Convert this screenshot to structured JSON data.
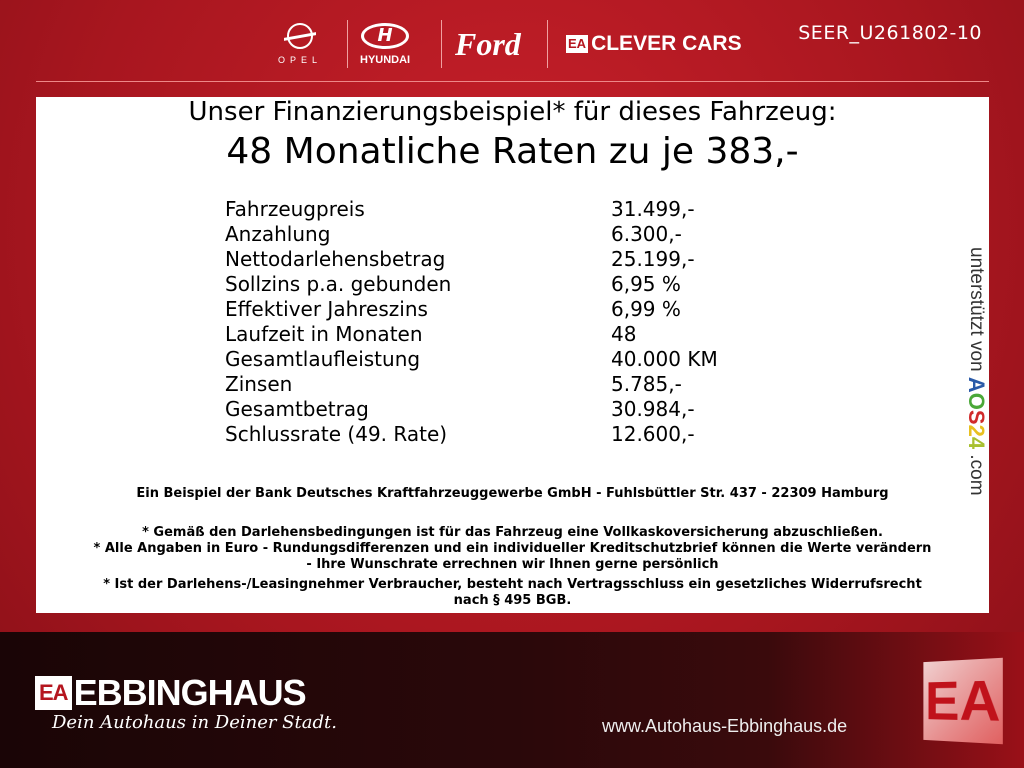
{
  "header": {
    "brands": [
      "OPEL",
      "HYUNDAI",
      "Ford",
      "CLEVER CARS"
    ],
    "clever_badge": "EA",
    "code": "SEER_U261802-10"
  },
  "offer": {
    "title": "Unser Finanzierungsbeispiel* für dieses Fahrzeug:",
    "headline": "48 Monatliche Raten zu je 383,-",
    "rows": [
      {
        "label": "Fahrzeugpreis",
        "value": "31.499,-"
      },
      {
        "label": "Anzahlung",
        "value": "6.300,-"
      },
      {
        "label": "Nettodarlehensbetrag",
        "value": "25.199,-"
      },
      {
        "label": "Sollzins p.a. gebunden",
        "value": "6,95 %"
      },
      {
        "label": "Effektiver Jahreszins",
        "value": "6,99 %"
      },
      {
        "label": "Laufzeit in Monaten",
        "value": "48"
      },
      {
        "label": "Gesamtlaufleistung",
        "value": "40.000 KM"
      },
      {
        "label": "Zinsen",
        "value": "5.785,-"
      },
      {
        "label": "Gesamtbetrag",
        "value": "30.984,-"
      },
      {
        "label": "Schlussrate (49. Rate)",
        "value": "12.600,-"
      }
    ],
    "bank": "Ein Beispiel der Bank Deutsches Kraftfahrzeuggewerbe GmbH - Fuhlsbüttler Str. 437 - 22309 Hamburg",
    "notes": [
      "* Gemäß den Darlehensbedingungen ist für das Fahrzeug eine Vollkaskoversicherung abzuschließen.",
      "* Alle Angaben in Euro - Rundungsdifferenzen und ein individueller Kreditschutzbrief können die Werte verändern",
      "- Ihre Wunschrate errechnen wir Ihnen gerne persönlich",
      "* Ist der Darlehens-/Leasingnehmer Verbraucher, besteht nach Vertragsschluss ein gesetzliches Widerrufsrecht",
      "nach § 495 BGB."
    ],
    "supported_prefix": "unterstützt von ",
    "aos_letters": [
      "A",
      "O",
      "S",
      "2",
      "4"
    ],
    "aos_colors": [
      "#2a5aa8",
      "#4aa838",
      "#d02a2a",
      "#e8c020",
      "#a8c030"
    ],
    "supported_suffix": " .com"
  },
  "footer": {
    "badge": "EA",
    "name": "EBBINGHAUS",
    "slogan": "Dein Autohaus in Deiner Stadt.",
    "url": "www.Autohaus-Ebbinghaus.de",
    "big_logo": "EA"
  },
  "colors": {
    "brand_red": "#b5161f"
  }
}
